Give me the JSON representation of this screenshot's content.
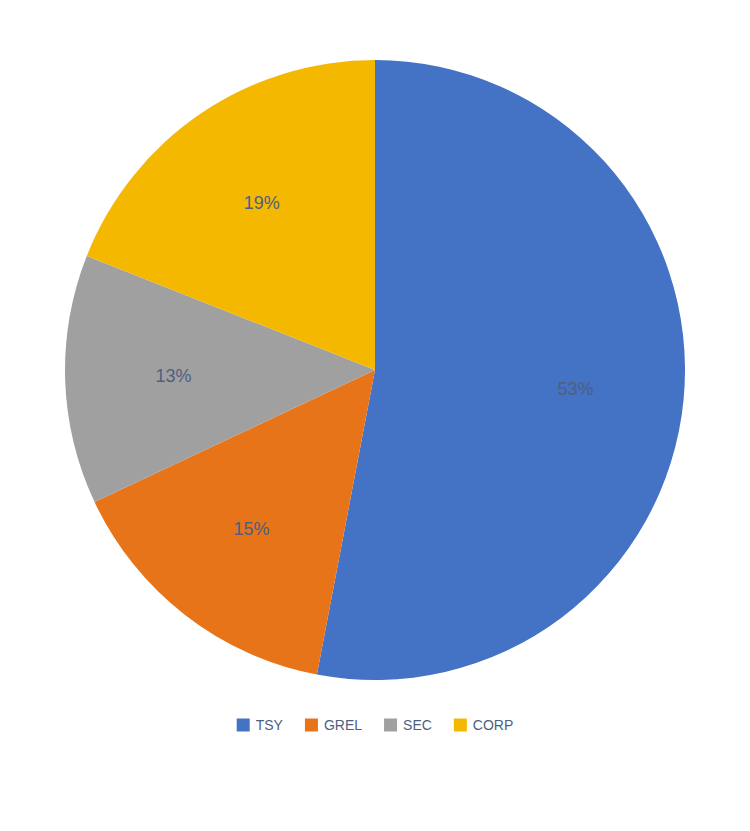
{
  "chart_data": {
    "type": "pie",
    "categories": [
      "TSY",
      "GREL",
      "SEC",
      "CORP"
    ],
    "values": [
      53,
      15,
      13,
      19
    ],
    "value_labels": [
      "53%",
      "15%",
      "13%",
      "19%"
    ],
    "colors": [
      "#4472C4",
      "#E8741A",
      "#A0A0A0",
      "#F5B800"
    ],
    "data_labels": true,
    "legend": "bottom"
  }
}
